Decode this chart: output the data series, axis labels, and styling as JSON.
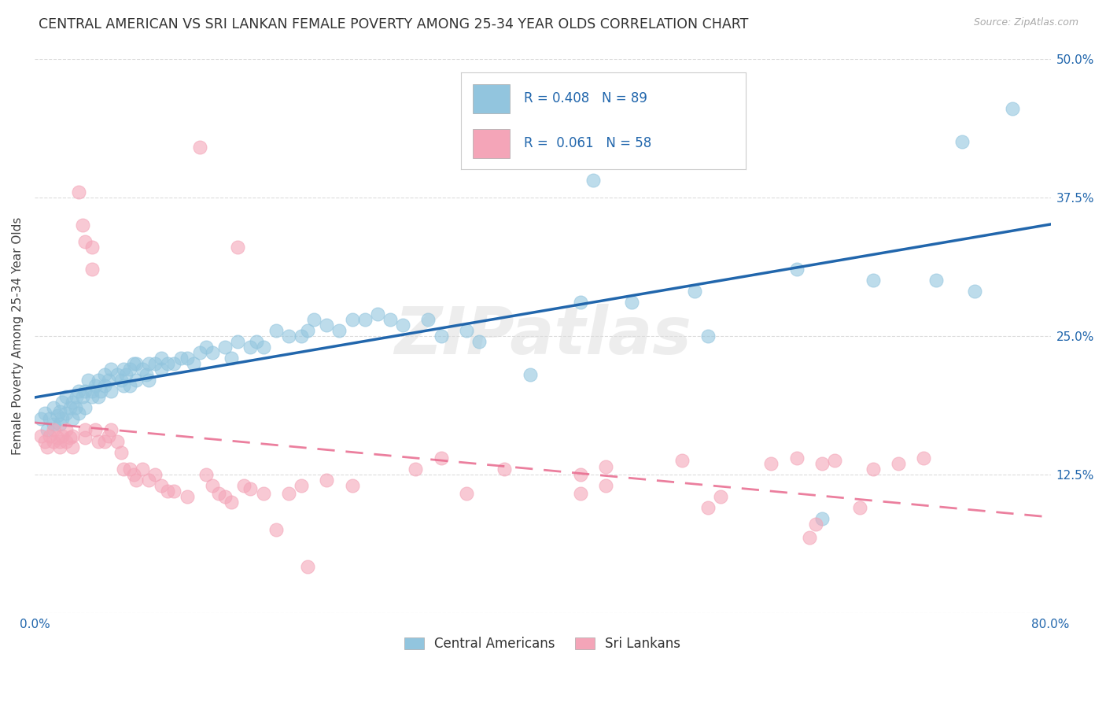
{
  "title": "CENTRAL AMERICAN VS SRI LANKAN FEMALE POVERTY AMONG 25-34 YEAR OLDS CORRELATION CHART",
  "source": "Source: ZipAtlas.com",
  "ylabel": "Female Poverty Among 25-34 Year Olds",
  "xlim": [
    0.0,
    0.8
  ],
  "ylim": [
    0.0,
    0.5
  ],
  "xticks": [
    0.0,
    0.1,
    0.2,
    0.3,
    0.4,
    0.5,
    0.6,
    0.7,
    0.8
  ],
  "xticklabels": [
    "0.0%",
    "",
    "",
    "",
    "",
    "",
    "",
    "",
    "80.0%"
  ],
  "yticks": [
    0.0,
    0.125,
    0.25,
    0.375,
    0.5
  ],
  "yticklabels": [
    "",
    "12.5%",
    "25.0%",
    "37.5%",
    "50.0%"
  ],
  "blue_color": "#92c5de",
  "pink_color": "#f4a5b8",
  "blue_line_color": "#2166ac",
  "pink_line_color": "#e8698d",
  "R_blue": 0.408,
  "N_blue": 89,
  "R_pink": 0.061,
  "N_pink": 58,
  "legend_label_blue": "Central Americans",
  "legend_label_pink": "Sri Lankans",
  "watermark": "ZIPatlas",
  "title_fontsize": 12.5,
  "label_fontsize": 11,
  "tick_fontsize": 11,
  "blue_scatter": [
    [
      0.005,
      0.175
    ],
    [
      0.008,
      0.18
    ],
    [
      0.01,
      0.165
    ],
    [
      0.012,
      0.175
    ],
    [
      0.015,
      0.17
    ],
    [
      0.015,
      0.185
    ],
    [
      0.018,
      0.178
    ],
    [
      0.02,
      0.17
    ],
    [
      0.02,
      0.182
    ],
    [
      0.022,
      0.19
    ],
    [
      0.022,
      0.175
    ],
    [
      0.025,
      0.18
    ],
    [
      0.025,
      0.195
    ],
    [
      0.028,
      0.185
    ],
    [
      0.03,
      0.19
    ],
    [
      0.03,
      0.175
    ],
    [
      0.032,
      0.185
    ],
    [
      0.033,
      0.195
    ],
    [
      0.035,
      0.18
    ],
    [
      0.035,
      0.2
    ],
    [
      0.038,
      0.195
    ],
    [
      0.04,
      0.185
    ],
    [
      0.04,
      0.2
    ],
    [
      0.042,
      0.21
    ],
    [
      0.045,
      0.2
    ],
    [
      0.045,
      0.195
    ],
    [
      0.048,
      0.205
    ],
    [
      0.05,
      0.195
    ],
    [
      0.05,
      0.21
    ],
    [
      0.052,
      0.2
    ],
    [
      0.055,
      0.205
    ],
    [
      0.055,
      0.215
    ],
    [
      0.058,
      0.21
    ],
    [
      0.06,
      0.2
    ],
    [
      0.06,
      0.22
    ],
    [
      0.065,
      0.215
    ],
    [
      0.068,
      0.21
    ],
    [
      0.07,
      0.205
    ],
    [
      0.07,
      0.22
    ],
    [
      0.072,
      0.215
    ],
    [
      0.075,
      0.22
    ],
    [
      0.075,
      0.205
    ],
    [
      0.078,
      0.225
    ],
    [
      0.08,
      0.21
    ],
    [
      0.08,
      0.225
    ],
    [
      0.085,
      0.22
    ],
    [
      0.088,
      0.215
    ],
    [
      0.09,
      0.225
    ],
    [
      0.09,
      0.21
    ],
    [
      0.095,
      0.225
    ],
    [
      0.1,
      0.22
    ],
    [
      0.1,
      0.23
    ],
    [
      0.105,
      0.225
    ],
    [
      0.11,
      0.225
    ],
    [
      0.115,
      0.23
    ],
    [
      0.12,
      0.23
    ],
    [
      0.125,
      0.225
    ],
    [
      0.13,
      0.235
    ],
    [
      0.135,
      0.24
    ],
    [
      0.14,
      0.235
    ],
    [
      0.15,
      0.24
    ],
    [
      0.155,
      0.23
    ],
    [
      0.16,
      0.245
    ],
    [
      0.17,
      0.24
    ],
    [
      0.175,
      0.245
    ],
    [
      0.18,
      0.24
    ],
    [
      0.19,
      0.255
    ],
    [
      0.2,
      0.25
    ],
    [
      0.21,
      0.25
    ],
    [
      0.215,
      0.255
    ],
    [
      0.22,
      0.265
    ],
    [
      0.23,
      0.26
    ],
    [
      0.24,
      0.255
    ],
    [
      0.25,
      0.265
    ],
    [
      0.26,
      0.265
    ],
    [
      0.27,
      0.27
    ],
    [
      0.28,
      0.265
    ],
    [
      0.29,
      0.26
    ],
    [
      0.31,
      0.265
    ],
    [
      0.32,
      0.25
    ],
    [
      0.34,
      0.255
    ],
    [
      0.35,
      0.245
    ],
    [
      0.39,
      0.215
    ],
    [
      0.43,
      0.28
    ],
    [
      0.44,
      0.39
    ],
    [
      0.47,
      0.28
    ],
    [
      0.52,
      0.29
    ],
    [
      0.53,
      0.25
    ],
    [
      0.6,
      0.31
    ],
    [
      0.62,
      0.085
    ],
    [
      0.66,
      0.3
    ],
    [
      0.71,
      0.3
    ],
    [
      0.73,
      0.425
    ],
    [
      0.74,
      0.29
    ],
    [
      0.77,
      0.455
    ]
  ],
  "pink_scatter": [
    [
      0.005,
      0.16
    ],
    [
      0.008,
      0.155
    ],
    [
      0.01,
      0.15
    ],
    [
      0.012,
      0.16
    ],
    [
      0.015,
      0.155
    ],
    [
      0.015,
      0.165
    ],
    [
      0.018,
      0.158
    ],
    [
      0.02,
      0.155
    ],
    [
      0.02,
      0.15
    ],
    [
      0.022,
      0.16
    ],
    [
      0.025,
      0.155
    ],
    [
      0.025,
      0.165
    ],
    [
      0.028,
      0.158
    ],
    [
      0.03,
      0.15
    ],
    [
      0.03,
      0.16
    ],
    [
      0.035,
      0.38
    ],
    [
      0.038,
      0.35
    ],
    [
      0.04,
      0.335
    ],
    [
      0.04,
      0.165
    ],
    [
      0.04,
      0.158
    ],
    [
      0.045,
      0.33
    ],
    [
      0.045,
      0.31
    ],
    [
      0.048,
      0.165
    ],
    [
      0.05,
      0.155
    ],
    [
      0.055,
      0.155
    ],
    [
      0.058,
      0.16
    ],
    [
      0.06,
      0.165
    ],
    [
      0.065,
      0.155
    ],
    [
      0.068,
      0.145
    ],
    [
      0.07,
      0.13
    ],
    [
      0.075,
      0.13
    ],
    [
      0.078,
      0.125
    ],
    [
      0.08,
      0.12
    ],
    [
      0.085,
      0.13
    ],
    [
      0.09,
      0.12
    ],
    [
      0.095,
      0.125
    ],
    [
      0.1,
      0.115
    ],
    [
      0.105,
      0.11
    ],
    [
      0.11,
      0.11
    ],
    [
      0.12,
      0.105
    ],
    [
      0.13,
      0.42
    ],
    [
      0.135,
      0.125
    ],
    [
      0.14,
      0.115
    ],
    [
      0.145,
      0.108
    ],
    [
      0.15,
      0.105
    ],
    [
      0.155,
      0.1
    ],
    [
      0.16,
      0.33
    ],
    [
      0.165,
      0.115
    ],
    [
      0.17,
      0.112
    ],
    [
      0.18,
      0.108
    ],
    [
      0.19,
      0.075
    ],
    [
      0.2,
      0.108
    ],
    [
      0.21,
      0.115
    ],
    [
      0.215,
      0.042
    ],
    [
      0.23,
      0.12
    ],
    [
      0.25,
      0.115
    ],
    [
      0.3,
      0.13
    ],
    [
      0.32,
      0.14
    ],
    [
      0.34,
      0.108
    ],
    [
      0.37,
      0.13
    ],
    [
      0.43,
      0.125
    ],
    [
      0.43,
      0.108
    ],
    [
      0.45,
      0.132
    ],
    [
      0.45,
      0.115
    ],
    [
      0.51,
      0.138
    ],
    [
      0.53,
      0.095
    ],
    [
      0.54,
      0.105
    ],
    [
      0.58,
      0.135
    ],
    [
      0.6,
      0.14
    ],
    [
      0.61,
      0.068
    ],
    [
      0.615,
      0.08
    ],
    [
      0.62,
      0.135
    ],
    [
      0.63,
      0.138
    ],
    [
      0.65,
      0.095
    ],
    [
      0.66,
      0.13
    ],
    [
      0.68,
      0.135
    ],
    [
      0.7,
      0.14
    ]
  ]
}
